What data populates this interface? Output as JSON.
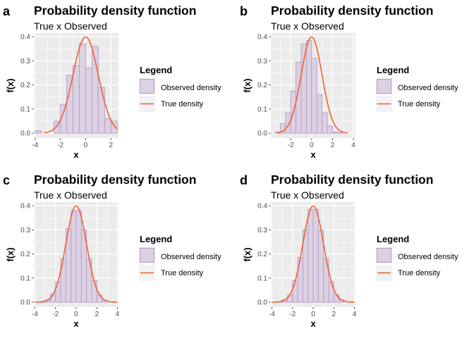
{
  "chart_data": [
    {
      "panel_label": "a",
      "type": "bar",
      "title": "Probability density function",
      "subtitle": "True x Observed",
      "xlabel": "x",
      "ylabel": "f(x)",
      "xlim": [
        -4.1,
        2.6
      ],
      "ylim": [
        -0.02,
        0.415
      ],
      "xticks": [
        -4,
        -2,
        0,
        2
      ],
      "yticks": [
        0.0,
        0.1,
        0.2,
        0.3,
        0.4
      ],
      "legend": {
        "title": "Legend",
        "placement": "right",
        "entries": [
          "Observed density",
          "True density"
        ]
      },
      "histogram": {
        "bin_edges": [
          -4.0,
          -3.5,
          -3.0,
          -2.5,
          -2.0,
          -1.5,
          -1.0,
          -0.5,
          0.0,
          0.5,
          1.0,
          1.5,
          2.0,
          2.5
        ],
        "density": [
          0.01,
          0.0,
          0.0,
          0.05,
          0.12,
          0.24,
          0.28,
          0.37,
          0.27,
          0.36,
          0.19,
          0.06,
          0.05
        ]
      },
      "true_density": {
        "distribution": "normal",
        "mean": 0,
        "sd": 1,
        "x_range": [
          -3.3,
          2.5
        ]
      }
    },
    {
      "panel_label": "b",
      "type": "bar",
      "title": "Probability density function",
      "subtitle": "True x Observed",
      "xlabel": "x",
      "ylabel": "f(x)",
      "xlim": [
        -3.9,
        4.2
      ],
      "ylim": [
        -0.02,
        0.415
      ],
      "xticks": [
        -2,
        0,
        2,
        4
      ],
      "yticks": [
        0.0,
        0.1,
        0.2,
        0.3,
        0.4
      ],
      "legend": {
        "title": "Legend",
        "placement": "right",
        "entries": [
          "Observed density",
          "True density"
        ]
      },
      "histogram": {
        "bin_edges": [
          -3.5,
          -3.0,
          -2.5,
          -2.0,
          -1.5,
          -1.0,
          -0.5,
          0.0,
          0.5,
          1.0,
          1.5,
          2.0,
          2.5,
          3.0
        ],
        "density": [
          0.005,
          0.04,
          0.085,
          0.175,
          0.295,
          0.37,
          0.385,
          0.31,
          0.16,
          0.085,
          0.03,
          0.005,
          0.003
        ]
      },
      "true_density": {
        "distribution": "normal",
        "mean": 0,
        "sd": 1,
        "x_range": [
          -3.3,
          3.5
        ]
      }
    },
    {
      "panel_label": "c",
      "type": "bar",
      "title": "Probability density function",
      "subtitle": "True x Observed",
      "xlabel": "x",
      "ylabel": "f(x)",
      "xlim": [
        -4.1,
        4.1
      ],
      "ylim": [
        -0.02,
        0.415
      ],
      "xticks": [
        -4,
        -2,
        0,
        2,
        4
      ],
      "yticks": [
        0.0,
        0.1,
        0.2,
        0.3,
        0.4
      ],
      "legend": {
        "title": "Legend",
        "placement": "right",
        "entries": [
          "Observed density",
          "True density"
        ]
      },
      "histogram": {
        "bin_edges": [
          -3.5,
          -3.0,
          -2.5,
          -2.0,
          -1.5,
          -1.0,
          -0.5,
          0.0,
          0.5,
          1.0,
          1.5,
          2.0,
          2.5,
          3.0
        ],
        "density": [
          0.003,
          0.01,
          0.035,
          0.085,
          0.18,
          0.305,
          0.38,
          0.38,
          0.3,
          0.18,
          0.09,
          0.03,
          0.008
        ]
      },
      "true_density": {
        "distribution": "normal",
        "mean": 0,
        "sd": 1,
        "x_range": [
          -4.0,
          4.0
        ]
      }
    },
    {
      "panel_label": "d",
      "type": "bar",
      "title": "Probability density function",
      "subtitle": "True x Observed",
      "xlabel": "x",
      "ylabel": "f(x)",
      "xlim": [
        -4.1,
        4.1
      ],
      "ylim": [
        -0.02,
        0.415
      ],
      "xticks": [
        -4,
        -2,
        0,
        2,
        4
      ],
      "yticks": [
        0.0,
        0.1,
        0.2,
        0.3,
        0.4
      ],
      "legend": {
        "title": "Legend",
        "placement": "right",
        "entries": [
          "Observed density",
          "True density"
        ]
      },
      "histogram": {
        "bin_edges": [
          -3.5,
          -3.0,
          -2.5,
          -2.0,
          -1.5,
          -1.0,
          -0.5,
          0.0,
          0.5,
          1.0,
          1.5,
          2.0,
          2.5,
          3.0
        ],
        "density": [
          0.002,
          0.01,
          0.03,
          0.09,
          0.185,
          0.3,
          0.385,
          0.385,
          0.3,
          0.18,
          0.085,
          0.03,
          0.01
        ]
      },
      "true_density": {
        "distribution": "normal",
        "mean": 0,
        "sd": 1,
        "x_range": [
          -4.0,
          4.0
        ]
      }
    }
  ],
  "colors": {
    "panel_background": "#ebebeb",
    "grid": "#ffffff",
    "bar_fill": "#dcd0e3",
    "bar_border": "#b69ac8",
    "true_density_line": "#f05a23",
    "text": "#000000",
    "tick_text": "#4d4d4d"
  }
}
